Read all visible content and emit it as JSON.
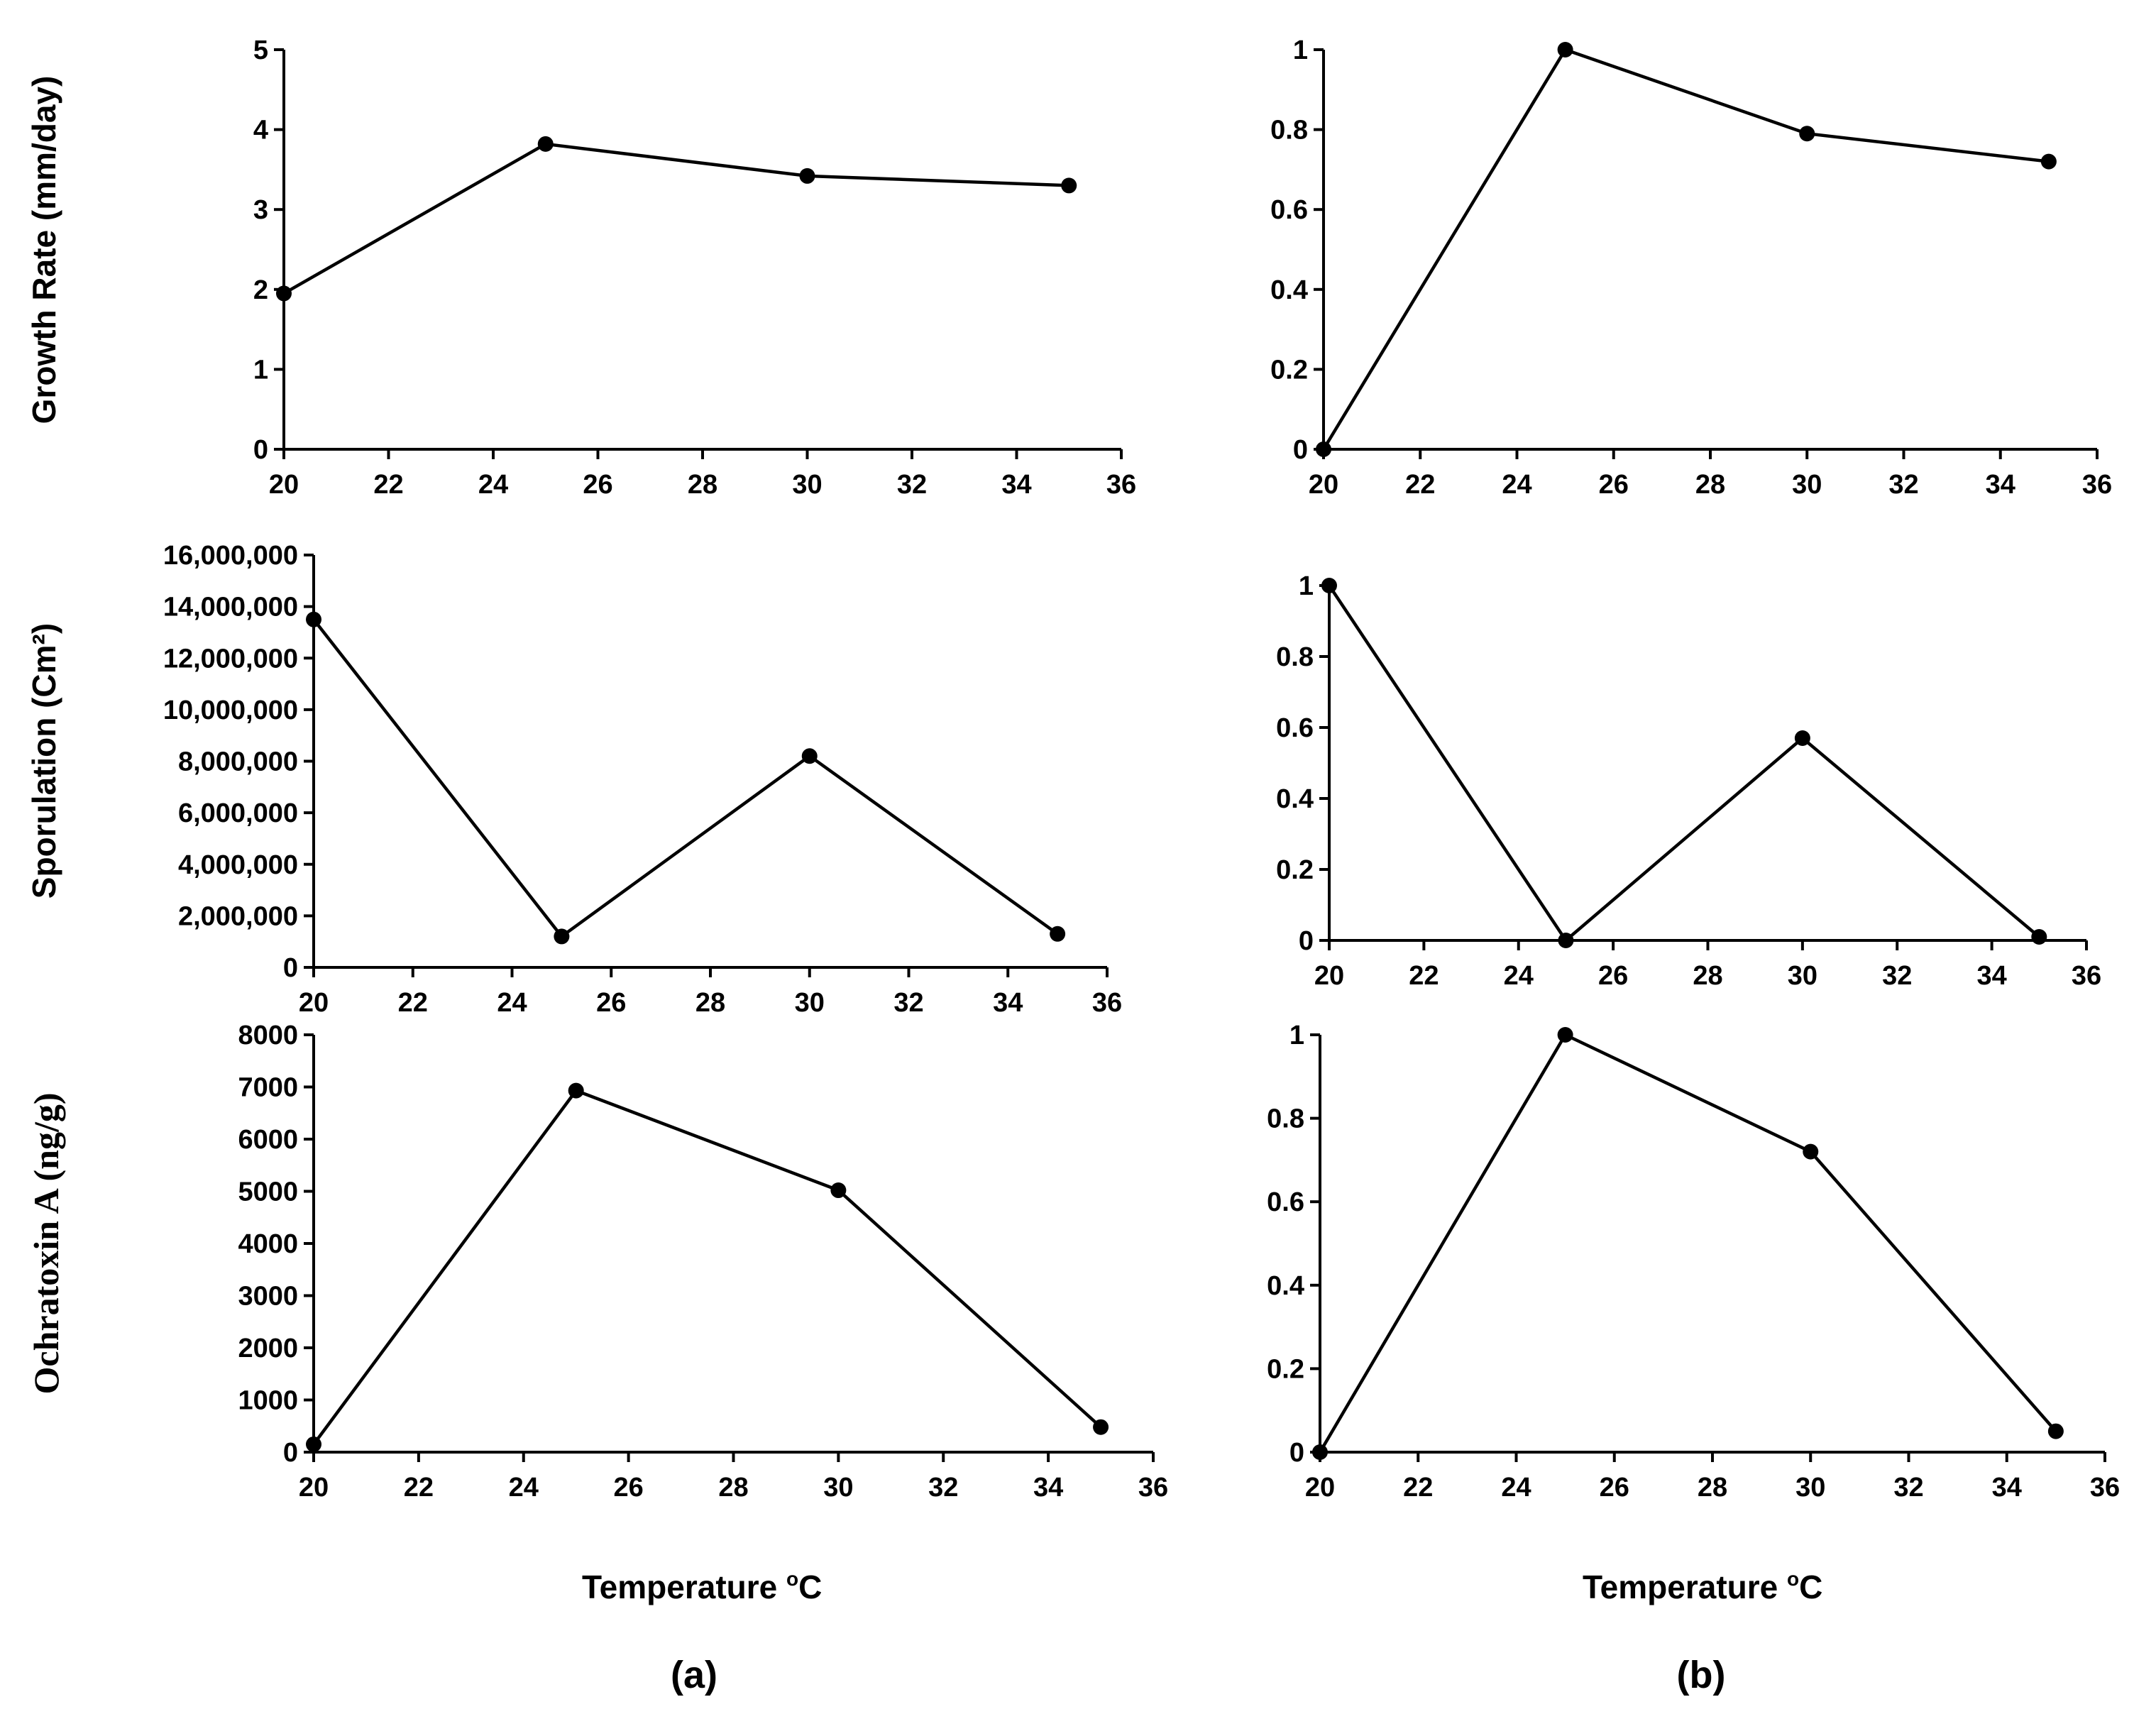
{
  "figure": {
    "xtitle_a": "Temperature ",
    "xtitle_b": "Temperature ",
    "xtitle_sup": "o",
    "xtitle_unit": "C",
    "panel_a": "(a)",
    "panel_b": "(b)"
  },
  "chart_data": [
    {
      "id": "growth-raw",
      "type": "line",
      "column": "a",
      "ylabel": "Growth Rate (mm/day)",
      "x": [
        20,
        25,
        30,
        35
      ],
      "values": [
        1.95,
        3.82,
        3.42,
        3.3
      ],
      "xlim": [
        20,
        36
      ],
      "xticks": [
        20,
        22,
        24,
        26,
        28,
        30,
        32,
        34,
        36
      ],
      "ylim": [
        0,
        5
      ],
      "yticks": [
        0,
        1,
        2,
        3,
        4,
        5
      ],
      "ytick_labels": [
        "0",
        "1",
        "2",
        "3",
        "4",
        "5"
      ]
    },
    {
      "id": "growth-norm",
      "type": "line",
      "column": "b",
      "ylabel": "",
      "x": [
        20,
        25,
        30,
        35
      ],
      "values": [
        0,
        1,
        0.79,
        0.72
      ],
      "xlim": [
        20,
        36
      ],
      "xticks": [
        20,
        22,
        24,
        26,
        28,
        30,
        32,
        34,
        36
      ],
      "ylim": [
        0,
        1
      ],
      "yticks": [
        0,
        0.2,
        0.4,
        0.6,
        0.8,
        1
      ],
      "ytick_labels": [
        "0",
        "0.2",
        "0.4",
        "0.6",
        "0.8",
        "1"
      ]
    },
    {
      "id": "sporulation-raw",
      "type": "line",
      "column": "a",
      "ylabel": "Sporulation (Cm²)",
      "x": [
        20,
        25,
        30,
        35
      ],
      "values": [
        13500000,
        1200000,
        8200000,
        1300000
      ],
      "xlim": [
        20,
        36
      ],
      "xticks": [
        20,
        22,
        24,
        26,
        28,
        30,
        32,
        34,
        36
      ],
      "ylim": [
        0,
        16000000
      ],
      "yticks": [
        0,
        2000000,
        4000000,
        6000000,
        8000000,
        10000000,
        12000000,
        14000000,
        16000000
      ],
      "ytick_labels": [
        "0",
        "2,000,000",
        "4,000,000",
        "6,000,000",
        "8,000,000",
        "10,000,000",
        "12,000,000",
        "14,000,000",
        "16,000,000"
      ]
    },
    {
      "id": "sporulation-norm",
      "type": "line",
      "column": "b",
      "ylabel": "",
      "x": [
        20,
        25,
        30,
        35
      ],
      "values": [
        1,
        0,
        0.57,
        0.01
      ],
      "xlim": [
        20,
        36
      ],
      "xticks": [
        20,
        22,
        24,
        26,
        28,
        30,
        32,
        34,
        36
      ],
      "ylim": [
        0,
        1
      ],
      "yticks": [
        0,
        0.2,
        0.4,
        0.6,
        0.8,
        1
      ],
      "ytick_labels": [
        "0",
        "0.2",
        "0.4",
        "0.6",
        "0.8",
        "1"
      ]
    },
    {
      "id": "ota-raw",
      "type": "line",
      "column": "a",
      "ylabel": "Ochratoxin A (ng/g)",
      "x": [
        20,
        25,
        30,
        35
      ],
      "values": [
        150,
        6930,
        5020,
        480
      ],
      "xlim": [
        20,
        36
      ],
      "xticks": [
        20,
        22,
        24,
        26,
        28,
        30,
        32,
        34,
        36
      ],
      "ylim": [
        0,
        8000
      ],
      "yticks": [
        0,
        1000,
        2000,
        3000,
        4000,
        5000,
        6000,
        7000,
        8000
      ],
      "ytick_labels": [
        "0",
        "1000",
        "2000",
        "3000",
        "4000",
        "5000",
        "6000",
        "7000",
        "8000"
      ]
    },
    {
      "id": "ota-norm",
      "type": "line",
      "column": "b",
      "ylabel": "",
      "x": [
        20,
        25,
        30,
        35
      ],
      "values": [
        0,
        1,
        0.72,
        0.05
      ],
      "xlim": [
        20,
        36
      ],
      "xticks": [
        20,
        22,
        24,
        26,
        28,
        30,
        32,
        34,
        36
      ],
      "ylim": [
        0,
        1
      ],
      "yticks": [
        0,
        0.2,
        0.4,
        0.6,
        0.8,
        1
      ],
      "ytick_labels": [
        "0",
        "0.2",
        "0.4",
        "0.6",
        "0.8",
        "1"
      ]
    }
  ]
}
